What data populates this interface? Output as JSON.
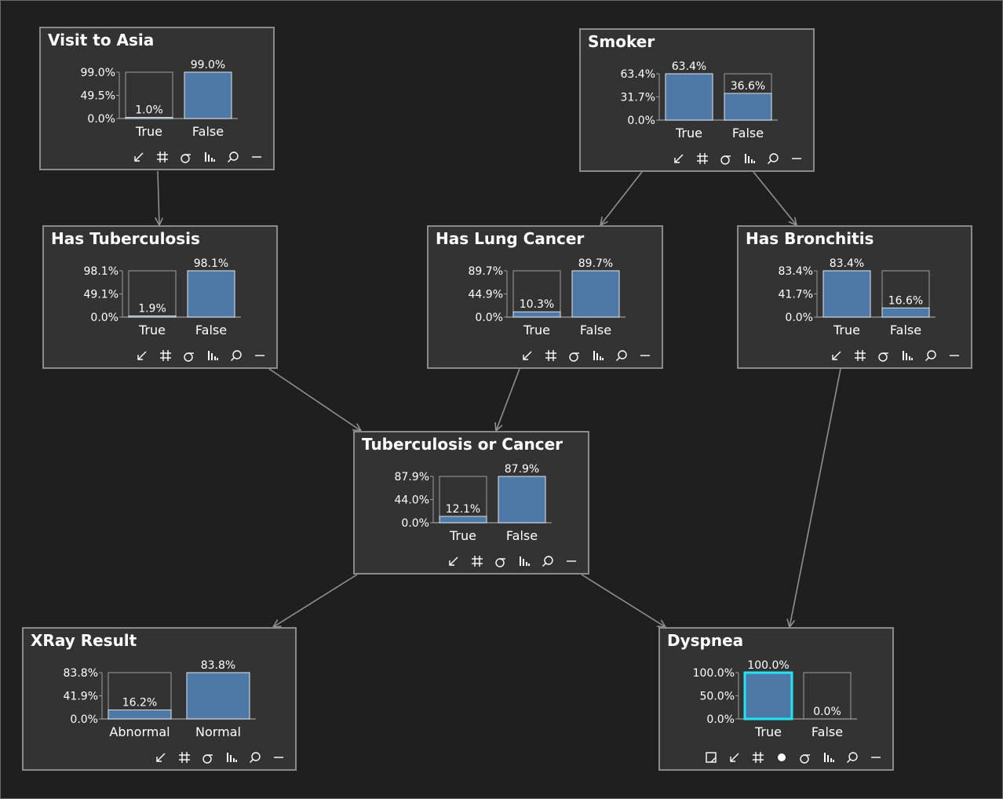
{
  "colors": {
    "background": "#1f1f1f",
    "node_bg": "#333333",
    "node_border": "#8a8a8a",
    "bar_fill": "#4e79a7",
    "bar_outline": "#9e9e9e",
    "evidence": "#22e5f2",
    "edge": "#909090"
  },
  "chart_data": [
    {
      "type": "bar",
      "id": "visit-to-asia",
      "title": "Visit to Asia",
      "categories": [
        "True",
        "False"
      ],
      "values": [
        1.0,
        99.0
      ],
      "value_labels": [
        "1.0%",
        "99.0%"
      ],
      "yticks": [
        "99.0%",
        "49.5%",
        "0.0%"
      ],
      "ylim": [
        0,
        99.0
      ]
    },
    {
      "type": "bar",
      "id": "smoker",
      "title": "Smoker",
      "categories": [
        "True",
        "False"
      ],
      "values": [
        63.4,
        36.6
      ],
      "value_labels": [
        "63.4%",
        "36.6%"
      ],
      "yticks": [
        "63.4%",
        "31.7%",
        "0.0%"
      ],
      "ylim": [
        0,
        63.4
      ]
    },
    {
      "type": "bar",
      "id": "has-tuberculosis",
      "title": "Has Tuberculosis",
      "categories": [
        "True",
        "False"
      ],
      "values": [
        1.9,
        98.1
      ],
      "value_labels": [
        "1.9%",
        "98.1%"
      ],
      "yticks": [
        "98.1%",
        "49.1%",
        "0.0%"
      ],
      "ylim": [
        0,
        98.1
      ]
    },
    {
      "type": "bar",
      "id": "has-lung-cancer",
      "title": "Has Lung Cancer",
      "categories": [
        "True",
        "False"
      ],
      "values": [
        10.3,
        89.7
      ],
      "value_labels": [
        "10.3%",
        "89.7%"
      ],
      "yticks": [
        "89.7%",
        "44.9%",
        "0.0%"
      ],
      "ylim": [
        0,
        89.7
      ]
    },
    {
      "type": "bar",
      "id": "has-bronchitis",
      "title": "Has Bronchitis",
      "categories": [
        "True",
        "False"
      ],
      "values": [
        83.4,
        16.6
      ],
      "value_labels": [
        "83.4%",
        "16.6%"
      ],
      "yticks": [
        "83.4%",
        "41.7%",
        "0.0%"
      ],
      "ylim": [
        0,
        83.4
      ]
    },
    {
      "type": "bar",
      "id": "tuberculosis-or-cancer",
      "title": "Tuberculosis or Cancer",
      "categories": [
        "True",
        "False"
      ],
      "values": [
        12.1,
        87.9
      ],
      "value_labels": [
        "12.1%",
        "87.9%"
      ],
      "yticks": [
        "87.9%",
        "44.0%",
        "0.0%"
      ],
      "ylim": [
        0,
        87.9
      ]
    },
    {
      "type": "bar",
      "id": "xray-result",
      "title": "XRay Result",
      "categories": [
        "Abnormal",
        "Normal"
      ],
      "values": [
        16.2,
        83.8
      ],
      "value_labels": [
        "16.2%",
        "83.8%"
      ],
      "yticks": [
        "83.8%",
        "41.9%",
        "0.0%"
      ],
      "ylim": [
        0,
        83.8
      ]
    },
    {
      "type": "bar",
      "id": "dyspnea",
      "title": "Dyspnea",
      "categories": [
        "True",
        "False"
      ],
      "values": [
        100.0,
        0.0
      ],
      "value_labels": [
        "100.0%",
        "0.0%"
      ],
      "yticks": [
        "100.0%",
        "50.0%",
        "0.0%"
      ],
      "ylim": [
        0,
        100.0
      ],
      "evidence_state": "True"
    }
  ],
  "edges": [
    [
      "visit-to-asia",
      "has-tuberculosis"
    ],
    [
      "smoker",
      "has-lung-cancer"
    ],
    [
      "smoker",
      "has-bronchitis"
    ],
    [
      "has-tuberculosis",
      "tuberculosis-or-cancer"
    ],
    [
      "has-lung-cancer",
      "tuberculosis-or-cancer"
    ],
    [
      "tuberculosis-or-cancer",
      "xray-result"
    ],
    [
      "tuberculosis-or-cancer",
      "dyspnea"
    ],
    [
      "has-bronchitis",
      "dyspnea"
    ]
  ],
  "toolbar_icons": [
    "arrow-icon",
    "grid-icon",
    "sigma-icon",
    "histogram-icon",
    "magnifier-icon",
    "minimize-icon"
  ],
  "evidence_toolbar_icons": [
    "clear-evidence-icon",
    "arrow-icon",
    "grid-icon",
    "evidence-dot-icon",
    "sigma-icon",
    "histogram-icon",
    "magnifier-icon",
    "minimize-icon"
  ]
}
